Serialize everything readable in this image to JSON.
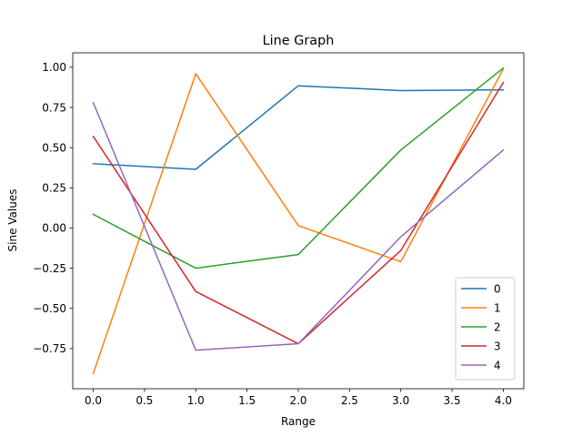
{
  "chart_data": {
    "type": "line",
    "title": "Line Graph",
    "xlabel": "Range",
    "ylabel": "Sine Values",
    "x": [
      0,
      1,
      2,
      3,
      4
    ],
    "xlim": [
      -0.2,
      4.2
    ],
    "ylim": [
      -1.0,
      1.09
    ],
    "xticks": [
      0.0,
      0.5,
      1.0,
      1.5,
      2.0,
      2.5,
      3.0,
      3.5,
      4.0
    ],
    "xtick_labels": [
      "0.0",
      "0.5",
      "1.0",
      "1.5",
      "2.0",
      "2.5",
      "3.0",
      "3.5",
      "4.0"
    ],
    "yticks": [
      -0.75,
      -0.5,
      -0.25,
      0.0,
      0.25,
      0.5,
      0.75,
      1.0
    ],
    "ytick_labels": [
      "−0.75",
      "−0.50",
      "−0.25",
      "0.00",
      "0.25",
      "0.50",
      "0.75",
      "1.00"
    ],
    "grid": false,
    "legend_position": "lower-right",
    "series": [
      {
        "name": "0",
        "color": "#1f77b4",
        "values": [
          0.4,
          0.365,
          0.885,
          0.855,
          0.86
        ]
      },
      {
        "name": "1",
        "color": "#ff7f0e",
        "values": [
          -0.905,
          0.96,
          0.015,
          -0.21,
          0.99
        ]
      },
      {
        "name": "2",
        "color": "#2ca02c",
        "values": [
          0.085,
          -0.25,
          -0.165,
          0.485,
          0.995
        ]
      },
      {
        "name": "3",
        "color": "#d62728",
        "values": [
          0.57,
          -0.395,
          -0.72,
          -0.14,
          0.905
        ]
      },
      {
        "name": "4",
        "color": "#9467bd",
        "values": [
          0.78,
          -0.76,
          -0.72,
          -0.055,
          0.485
        ]
      }
    ]
  }
}
